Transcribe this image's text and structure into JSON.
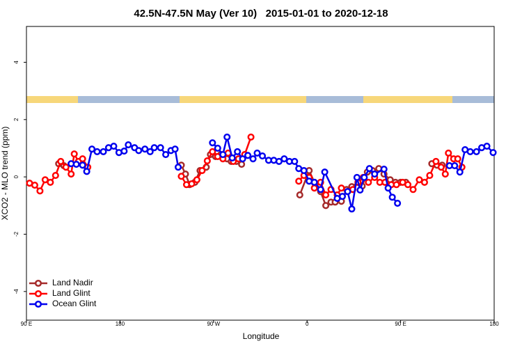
{
  "chart_data": {
    "type": "line",
    "title": "42.5N-47.5N May (Ver 10)   2015-01-01 to 2020-12-18",
    "x_label": "Longitude",
    "y_label": "XCO2 - MLO trend (ppm)",
    "xlim": [
      90,
      540
    ],
    "ylim": [
      -5,
      5.25
    ],
    "xticks": [
      {
        "value": 90,
        "label": "90 E"
      },
      {
        "value": 180,
        "label": "180"
      },
      {
        "value": 270,
        "label": "90 W"
      },
      {
        "value": 360,
        "label": "0"
      },
      {
        "value": 450,
        "label": "90 E"
      },
      {
        "value": 540,
        "label": "180"
      }
    ],
    "yticks": [
      -4,
      -2,
      0,
      2,
      4
    ],
    "grid": false,
    "legend": "bottom-left",
    "series": [
      {
        "name": "Land Nadir",
        "color": "#a52a2a",
        "x": [
          121,
          126,
          null,
          239,
          243,
          247,
          252,
          257,
          263,
          267,
          272,
          277,
          283,
          287,
          292,
          297,
          null,
          353,
          362,
          367,
          373,
          378,
          383,
          387,
          393,
          398,
          403,
          409,
          413,
          418,
          423,
          429,
          434,
          440,
          445,
          450,
          455,
          null,
          480,
          485,
          490
        ],
        "values": [
          0.46,
          0.39,
          null,
          0.41,
          0.1,
          -0.27,
          -0.19,
          0.22,
          0.34,
          0.78,
          0.71,
          0.78,
          0.63,
          0.54,
          0.54,
          0.44,
          null,
          -0.63,
          0.22,
          -0.19,
          -0.51,
          -1.0,
          -0.88,
          -0.88,
          -0.85,
          -0.44,
          -0.34,
          -0.19,
          -0.32,
          0.17,
          0.22,
          0.29,
          0.1,
          -0.1,
          -0.19,
          -0.19,
          -0.19,
          null,
          0.46,
          0.41,
          0.41
        ]
      },
      {
        "name": "Land Glint",
        "color": "#ff0000",
        "x": [
          93,
          98,
          103,
          108,
          113,
          118,
          123,
          128,
          133,
          136,
          140,
          144,
          149,
          null,
          239,
          244,
          249,
          254,
          259,
          264,
          269,
          274,
          279,
          284,
          289,
          294,
          300,
          306,
          null,
          352,
          357,
          362,
          367,
          373,
          378,
          383,
          389,
          393,
          399,
          404,
          409,
          414,
          419,
          425,
          430,
          435,
          441,
          446,
          452,
          457,
          462,
          468,
          473,
          478,
          484,
          489,
          493,
          496,
          501,
          505,
          509
        ],
        "values": [
          -0.22,
          -0.29,
          -0.49,
          -0.1,
          -0.19,
          0.05,
          0.54,
          0.34,
          0.1,
          0.8,
          0.54,
          0.63,
          0.34,
          null,
          0.02,
          -0.27,
          -0.24,
          -0.1,
          0.22,
          0.56,
          0.88,
          0.71,
          0.63,
          0.83,
          0.54,
          0.63,
          0.78,
          1.39,
          null,
          -0.15,
          0.05,
          -0.02,
          -0.39,
          -0.19,
          -0.63,
          -0.44,
          -0.63,
          -0.39,
          -0.51,
          -0.44,
          -0.19,
          -0.02,
          -0.19,
          -0.02,
          -0.19,
          -0.19,
          -0.27,
          -0.27,
          -0.19,
          -0.27,
          -0.44,
          -0.1,
          -0.19,
          0.05,
          0.54,
          0.34,
          0.1,
          0.83,
          0.63,
          0.63,
          0.34
        ]
      },
      {
        "name": "Ocean Glint",
        "color": "#0000ee",
        "x": [
          133,
          138,
          144,
          148,
          153,
          158,
          164,
          169,
          174,
          179,
          184,
          188,
          194,
          198,
          204,
          209,
          213,
          219,
          224,
          229,
          233,
          236,
          null,
          269,
          274,
          279,
          283,
          288,
          293,
          298,
          303,
          308,
          312,
          317,
          323,
          328,
          333,
          338,
          343,
          348,
          352,
          357,
          362,
          367,
          373,
          377,
          389,
          394,
          399,
          403,
          408,
          411,
          415,
          420,
          425,
          434,
          438,
          442,
          447,
          null,
          497,
          502,
          507,
          512,
          517,
          523,
          528,
          533,
          539
        ],
        "values": [
          0.46,
          0.44,
          0.41,
          0.19,
          0.97,
          0.88,
          0.88,
          1.02,
          1.07,
          0.85,
          0.9,
          1.12,
          1.02,
          0.92,
          0.97,
          0.88,
          1.02,
          1.02,
          0.78,
          0.92,
          0.97,
          0.34,
          null,
          1.19,
          1.0,
          0.78,
          1.39,
          0.66,
          0.88,
          0.63,
          0.75,
          0.63,
          0.83,
          0.73,
          0.58,
          0.58,
          0.54,
          0.63,
          0.54,
          0.54,
          0.29,
          0.22,
          -0.15,
          -0.19,
          -0.44,
          0.17,
          -0.75,
          -0.68,
          -0.51,
          -1.12,
          -0.02,
          -0.46,
          -0.02,
          0.29,
          0.1,
          0.27,
          -0.39,
          -0.71,
          -0.92,
          null,
          0.39,
          0.39,
          0.17,
          0.95,
          0.88,
          0.88,
          1.02,
          1.07,
          0.85
        ]
      }
    ]
  }
}
